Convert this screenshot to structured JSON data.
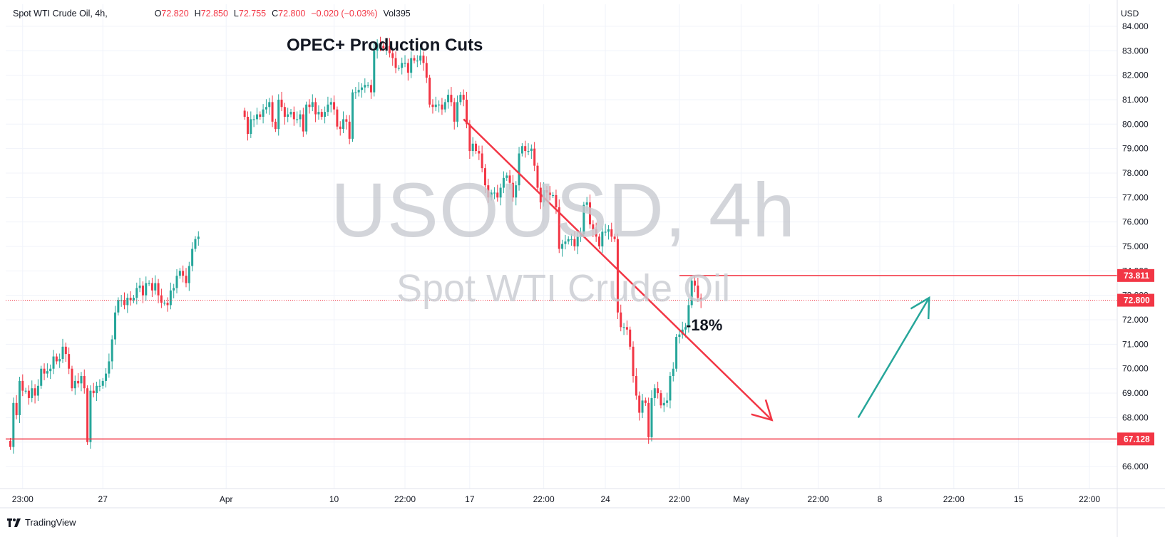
{
  "legend": {
    "symbol": "Spot WTI Crude Oil, 4h,",
    "open_label": "O",
    "open": "72.820",
    "high_label": "H",
    "high": "72.850",
    "low_label": "L",
    "low": "72.755",
    "close_label": "C",
    "close": "72.800",
    "change": "−0.020 (−0.03%)",
    "vol_label": "Vol",
    "vol": "395"
  },
  "currency": "USD",
  "watermark": {
    "main": "USOUSD, 4h",
    "sub": "Spot WTI Crude Oil"
  },
  "annotations": {
    "title": "OPEC+ Production Cuts",
    "pct": "-18%"
  },
  "branding": {
    "name": "TradingView",
    "logo_icon": "tradingview-logo-icon"
  },
  "colors": {
    "up": "#26a69a",
    "down": "#f23645",
    "grid": "#f0f3fa",
    "text": "#131722"
  },
  "chart_data": {
    "type": "candlestick",
    "title": "Spot WTI Crude Oil, 4h",
    "currency": "USD",
    "y_ticks": [
      "66.000",
      "67.000",
      "68.000",
      "69.000",
      "70.000",
      "71.000",
      "72.000",
      "73.000",
      "74.000",
      "75.000",
      "76.000",
      "77.000",
      "78.000",
      "79.000",
      "80.000",
      "81.000",
      "82.000",
      "83.000",
      "84.000"
    ],
    "ylim": [
      65.1,
      84.9
    ],
    "x_ticks": [
      {
        "label": "23:00",
        "x": 4
      },
      {
        "label": "27",
        "x": 30
      },
      {
        "label": "Apr",
        "x": 70
      },
      {
        "label": "10",
        "x": 105
      },
      {
        "label": "22:00",
        "x": 128
      },
      {
        "label": "17",
        "x": 149
      },
      {
        "label": "22:00",
        "x": 173
      },
      {
        "label": "24",
        "x": 193
      },
      {
        "label": "22:00",
        "x": 217
      },
      {
        "label": "May",
        "x": 237
      },
      {
        "label": "22:00",
        "x": 262
      },
      {
        "label": "8",
        "x": 282
      },
      {
        "label": "22:00",
        "x": 306
      },
      {
        "label": "15",
        "x": 327
      },
      {
        "label": "22:00",
        "x": 350
      }
    ],
    "xlim": [
      -1.5,
      359
    ],
    "price_lines": [
      {
        "value": 73.811,
        "label": "73.811",
        "style": "solid"
      },
      {
        "value": 72.8,
        "label": "72.800",
        "style": "dotted"
      },
      {
        "value": 67.128,
        "label": "67.128",
        "style": "solid"
      }
    ],
    "trend_arrows": [
      {
        "from": [
          147,
          80.2
        ],
        "to": [
          247,
          67.9
        ],
        "color": "down"
      },
      {
        "from": [
          275,
          68.0
        ],
        "to": [
          298,
          72.9
        ],
        "color": "up"
      }
    ],
    "segments": [
      {
        "start": 0,
        "values": [
          66.8,
          68.6,
          68.1,
          69.5,
          69.1,
          69.1,
          68.8,
          69.2,
          68.9,
          69.3,
          70.0,
          69.8,
          69.9,
          70.0,
          70.5,
          70.3,
          70.4,
          70.9,
          70.6,
          70.0,
          69.2,
          69.5,
          69.4,
          69.7,
          69.2,
          67.0,
          69.1,
          69.0,
          69.3,
          69.3,
          69.5,
          69.8,
          70.3,
          71.2,
          72.3,
          72.8,
          72.8,
          72.6,
          72.9,
          72.8,
          72.9,
          73.3,
          73.4,
          73.0,
          73.5,
          73.5,
          73.2,
          73.5,
          73.0,
          72.7,
          72.7,
          72.6,
          73.2,
          73.3,
          73.8,
          74.0,
          73.8,
          73.5,
          74.2,
          74.9,
          75.3,
          75.4
        ]
      },
      {
        "start": 76,
        "values": [
          80.3,
          79.6,
          80.2,
          80.2,
          80.4,
          80.3,
          80.6,
          80.7,
          80.9,
          80.1,
          79.8,
          81.0,
          80.7,
          80.3,
          80.4,
          80.5,
          80.2,
          80.2,
          80.4,
          79.7,
          80.8,
          80.7,
          80.9,
          80.4,
          80.5,
          80.3,
          80.5,
          80.8,
          80.9,
          80.6,
          79.9,
          79.8,
          80.2,
          80.1,
          79.4,
          81.3,
          81.3,
          81.4,
          81.5,
          81.6,
          81.6,
          81.3,
          83.0,
          83.3,
          83.2,
          83.1,
          83.2,
          82.9,
          82.7,
          82.3,
          82.3,
          82.5,
          82.5,
          82.1,
          82.7,
          82.6,
          82.6,
          82.8,
          82.5,
          81.9,
          80.8,
          80.7,
          80.8,
          80.8,
          80.6,
          80.9,
          81.2,
          80.9,
          80.1,
          80.9,
          81.2,
          81.0,
          80.0,
          78.9,
          79.2,
          78.9,
          78.8,
          78.2,
          77.5,
          77.0,
          77.2,
          77.2,
          77.0,
          77.4,
          77.8,
          77.9,
          77.6,
          77.0,
          77.5,
          78.8,
          79.1,
          78.9,
          78.9,
          79.0,
          78.3,
          77.4,
          76.8,
          77.3,
          77.2,
          77.1,
          77.1,
          76.6,
          74.9,
          75.1,
          75.2,
          75.3,
          75.3,
          75.0,
          75.4,
          75.5,
          76.7,
          76.8,
          75.9,
          75.7,
          75.4,
          75.0,
          75.6,
          75.6,
          75.7,
          75.4,
          75.3,
          72.3,
          71.7,
          71.7,
          71.6,
          70.9,
          69.7,
          68.9,
          68.2,
          68.7,
          68.6,
          67.2,
          68.8,
          69.2,
          69.0,
          68.5,
          68.6,
          68.7,
          69.7,
          70.0,
          71.3,
          71.4,
          71.6,
          71.7,
          72.6,
          73.6,
          73.4,
          72.9,
          72.8
        ]
      }
    ]
  }
}
